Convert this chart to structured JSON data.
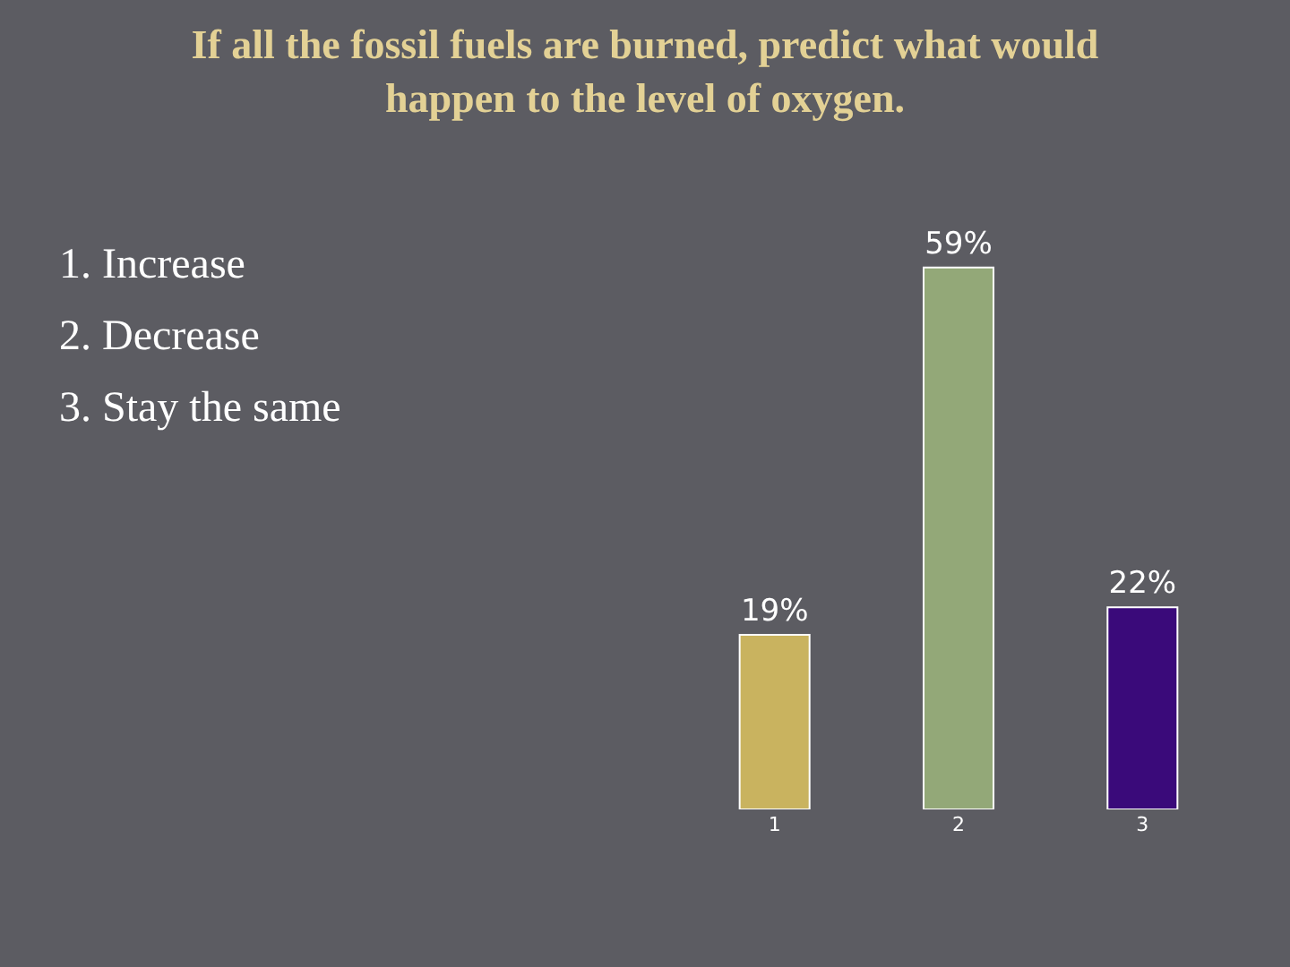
{
  "chart_data": {
    "type": "bar",
    "title": "If all the fossil fuels are burned, predict what would happen to the level of oxygen.",
    "categories": [
      "1",
      "2",
      "3"
    ],
    "values": [
      19,
      59,
      22
    ],
    "colors": [
      "#c9b35f",
      "#93a878",
      "#3a0a7a"
    ],
    "value_labels": [
      "19%",
      "59%",
      "22%"
    ],
    "annotations": [
      "1. Increase",
      "2. Decrease",
      "3. Stay the same"
    ],
    "grid": false,
    "legend": false
  }
}
